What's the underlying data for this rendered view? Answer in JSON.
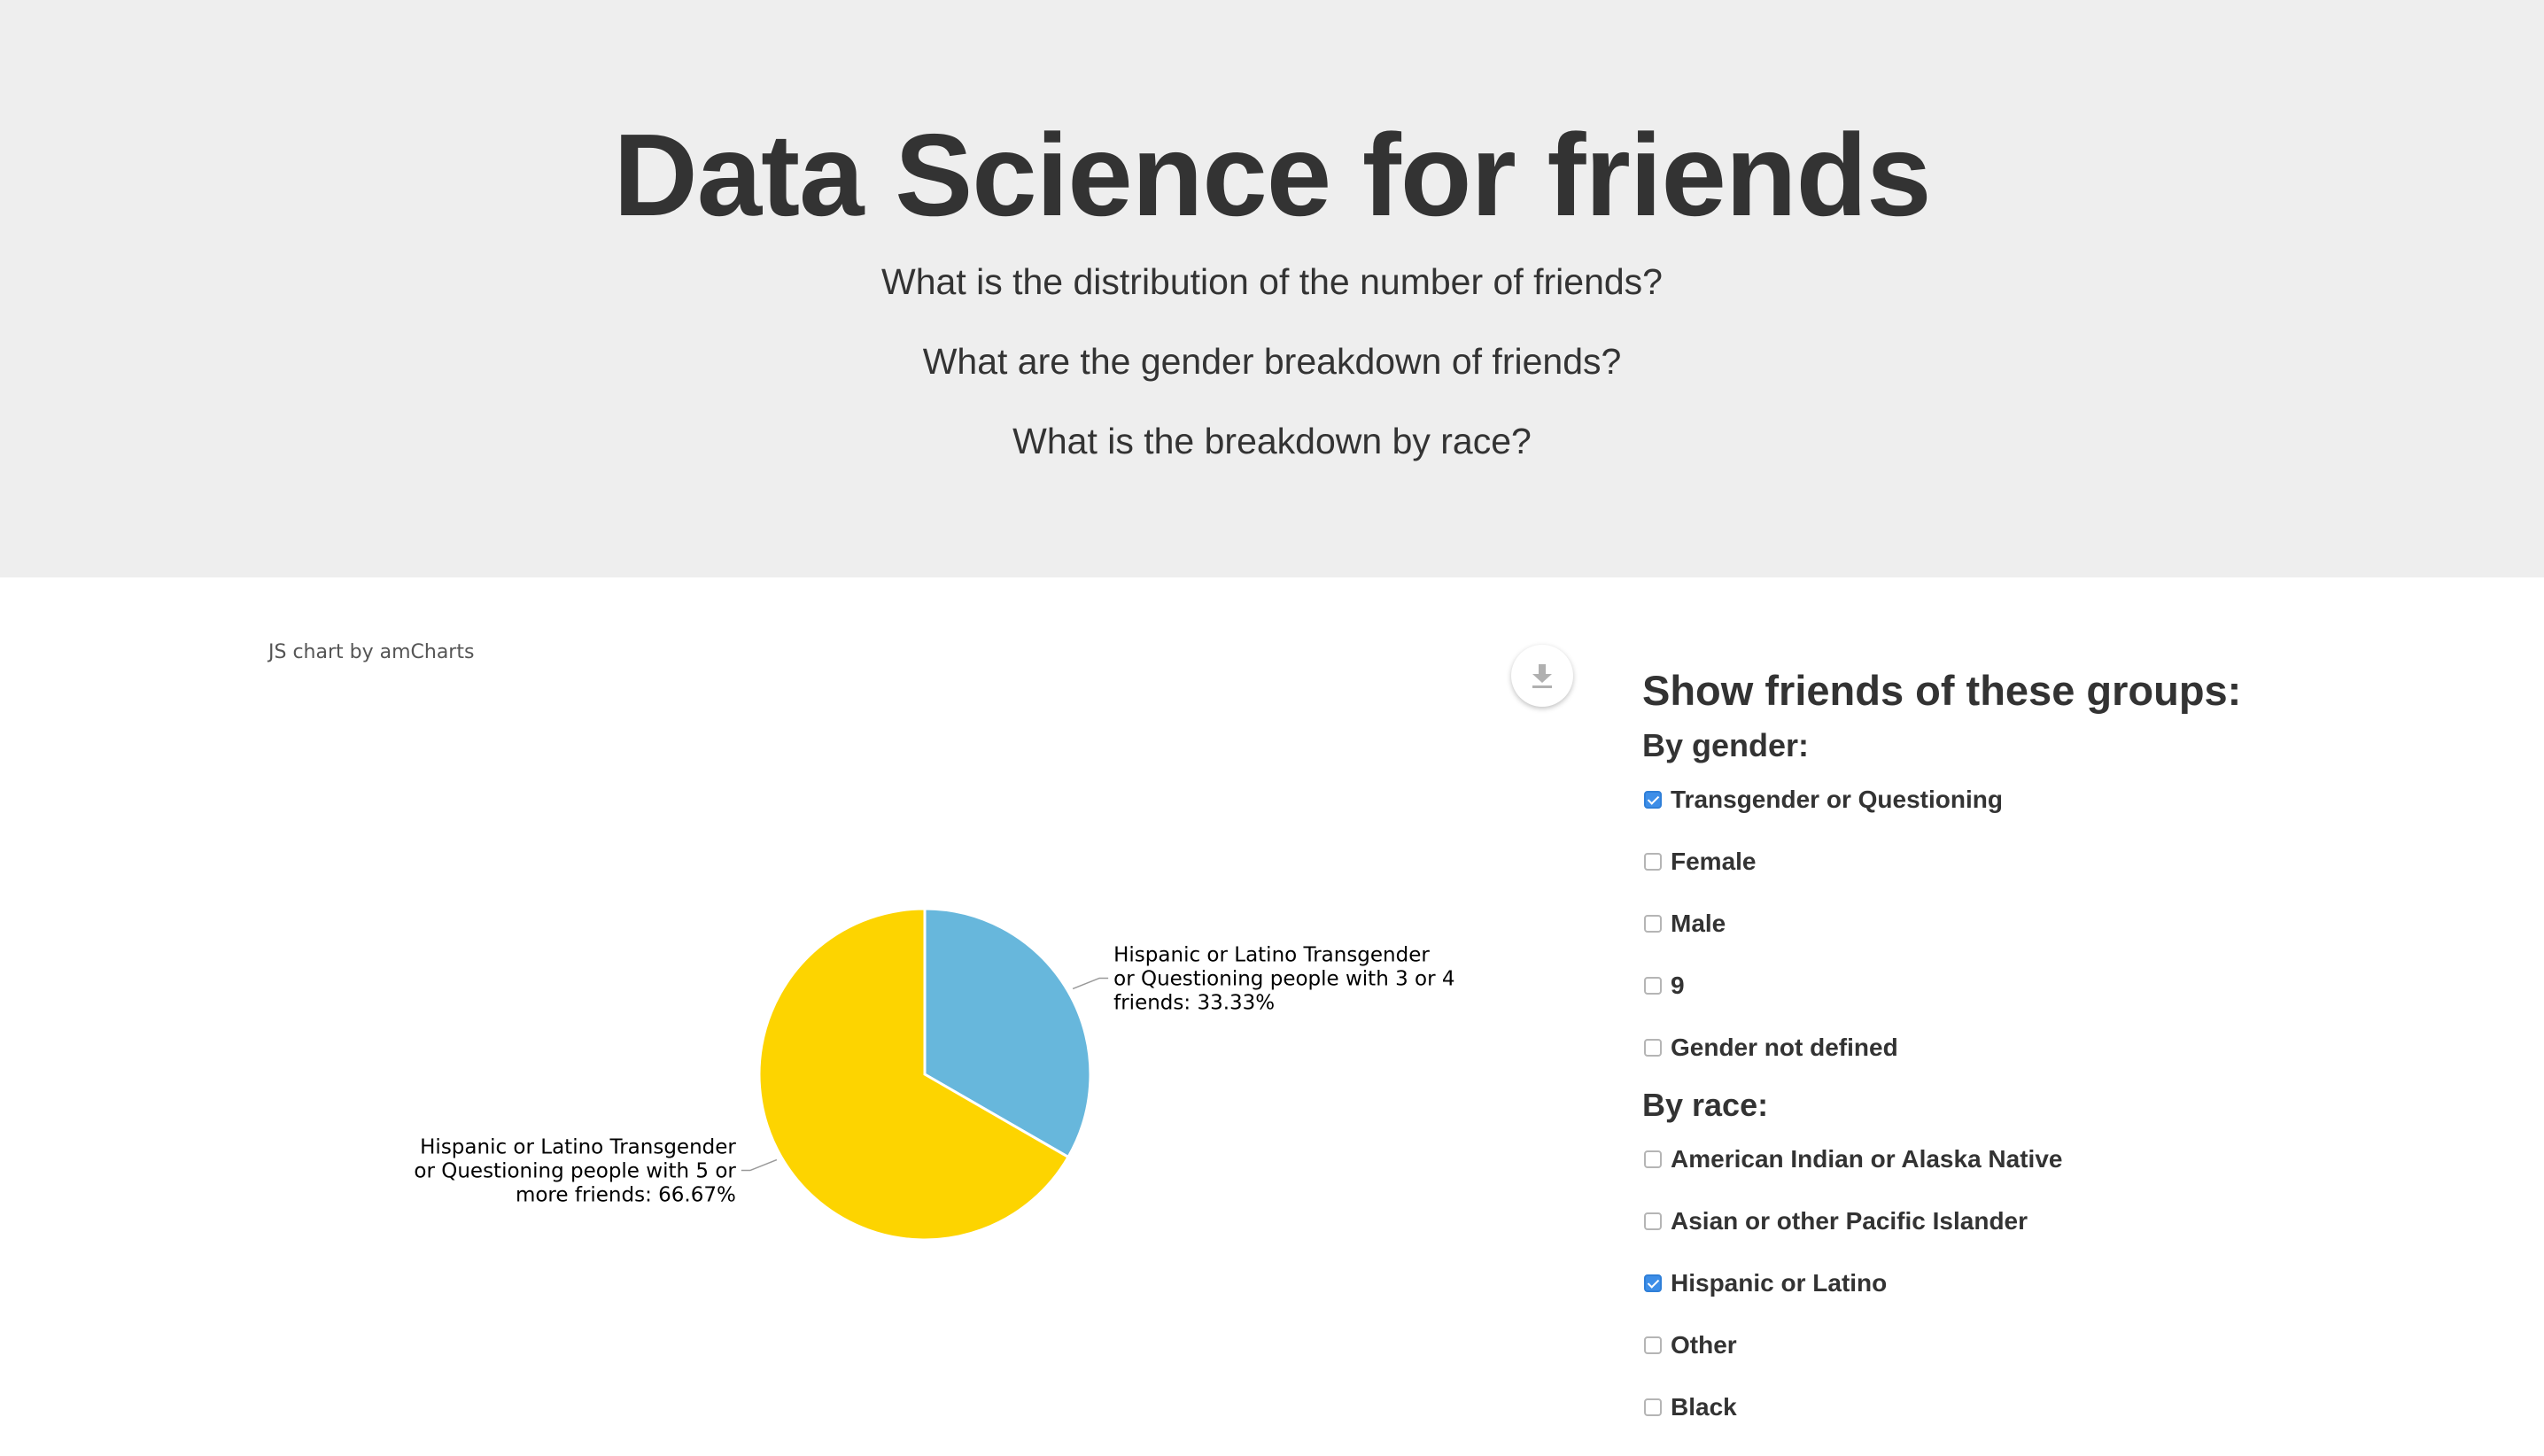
{
  "hero": {
    "title": "Data Science for friends",
    "questions": [
      "What is the distribution of the number of friends?",
      "What are the gender breakdown of friends?",
      "What is the breakdown by race?"
    ]
  },
  "chart": {
    "credit": "JS chart by amCharts",
    "export_icon": "download-icon"
  },
  "chart_data": {
    "type": "pie",
    "categories": [
      "Hispanic or Latino Transgender or Questioning people with 3 or 4 friends",
      "Hispanic or Latino Transgender or Questioning people with 5 or more friends"
    ],
    "values": [
      33.33,
      66.67
    ],
    "unit": "%",
    "colors": [
      "#67b7dc",
      "#fdd400"
    ],
    "labels": [
      [
        "Hispanic or Latino Transgender",
        "or Questioning people with 3 or 4",
        "friends: 33.33%"
      ],
      [
        "Hispanic or Latino Transgender",
        "or Questioning people with 5 or",
        "more friends: 66.67%"
      ]
    ]
  },
  "filters": {
    "heading": "Show friends of these groups:",
    "gender_heading": "By gender:",
    "gender_options": [
      {
        "label": "Transgender or Questioning",
        "checked": true
      },
      {
        "label": "Female",
        "checked": false
      },
      {
        "label": "Male",
        "checked": false
      },
      {
        "label": "9",
        "checked": false
      },
      {
        "label": "Gender not defined",
        "checked": false
      }
    ],
    "race_heading": "By race:",
    "race_options": [
      {
        "label": "American Indian or Alaska Native",
        "checked": false
      },
      {
        "label": "Asian or other Pacific Islander",
        "checked": false
      },
      {
        "label": "Hispanic or Latino",
        "checked": true
      },
      {
        "label": "Other",
        "checked": false
      },
      {
        "label": "Black",
        "checked": false
      }
    ]
  },
  "colors": {
    "hero_bg": "#eeeeee",
    "checkbox_checked": "#3d8ee8"
  }
}
